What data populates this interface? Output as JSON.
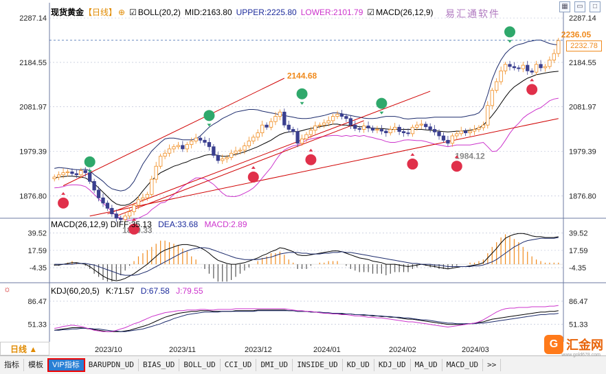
{
  "main_legend": {
    "symbol": "现货黄金",
    "period": "【日线】",
    "boll": "BOLL(20,2)",
    "mid": "MID:2163.80",
    "upper": "UPPER:2225.80",
    "lower": "LOWER:2101.79",
    "macd_label": "MACD(26,12,9)"
  },
  "watermark": "易汇通软件",
  "macd_legend": {
    "title": "MACD(26,12,9)",
    "diff": "DIFF:35.13",
    "dea": "DEA:33.68",
    "macd": "MACD:2.89"
  },
  "kdj_legend": {
    "title": "KDJ(60,20,5)",
    "k": "K:71.57",
    "d": "D:67.58",
    "j": "J:79.55"
  },
  "current_price": "2232.78",
  "period_button": "日线 ▲",
  "tabs": [
    "指标",
    "模板",
    "VIP指标",
    "BARUPDN_UD",
    "BIAS_UD",
    "BOLL_UD",
    "CCI_UD",
    "DMI_UD",
    "INSIDE_UD",
    "KD_UD",
    "KDJ_UD",
    "MA_UD",
    "MACD_UD",
    ">>"
  ],
  "logo": {
    "mark": "G",
    "name": "汇金网",
    "url": "www.gold678.com"
  },
  "colors": {
    "up": "#f08a1c",
    "down": "#3a3f8f",
    "grid": "#b0b8d0",
    "boll_upper": "#1b2a6b",
    "boll_mid": "#000000",
    "boll_lower": "#cc33cc",
    "trend": "#d00000",
    "buy": "#e0304a",
    "sell": "#2fa86b"
  },
  "chart_data": [
    {
      "type": "candlestick",
      "title": "现货黄金 日线",
      "ylim": [
        1825,
        2300
      ],
      "y_ticks": [
        2287.14,
        2184.55,
        2081.97,
        1979.39,
        1876.8
      ],
      "x_labels": [
        "2023/10",
        "2023/11",
        "2023/12",
        "2024/01",
        "2024/02",
        "2024/03"
      ],
      "annotations": {
        "high": "2236.05",
        "high2": "2144.68",
        "low": "1810.33",
        "low2": "1984.12"
      },
      "close": [
        1920,
        1925,
        1930,
        1932,
        1928,
        1925,
        1935,
        1930,
        1910,
        1890,
        1872,
        1860,
        1848,
        1835,
        1825,
        1822,
        1830,
        1840,
        1855,
        1868,
        1872,
        1880,
        1915,
        1945,
        1968,
        1975,
        1985,
        1990,
        1993,
        1985,
        1995,
        2003,
        2010,
        2005,
        2000,
        1990,
        1970,
        1958,
        1962,
        1965,
        1975,
        1980,
        1982,
        1992,
        2003,
        2012,
        2022,
        2040,
        2035,
        2048,
        2060,
        2070,
        2040,
        2030,
        2025,
        1998,
        2008,
        2018,
        2028,
        2038,
        2040,
        2045,
        2050,
        2060,
        2065,
        2060,
        2055,
        2040,
        2032,
        2030,
        2038,
        2033,
        2028,
        2030,
        2026,
        2022,
        2030,
        2035,
        2025,
        2022,
        2020,
        2035,
        2040,
        2042,
        2036,
        2030,
        2024,
        2015,
        2005,
        1998,
        2015,
        2020,
        2026,
        2022,
        2026,
        2030,
        2034,
        2040,
        2085,
        2120,
        2140,
        2165,
        2180,
        2175,
        2172,
        2170,
        2178,
        2165,
        2162,
        2180,
        2172,
        2175,
        2190,
        2205,
        2235
      ],
      "boll_upper": [
        1940,
        1942,
        1941,
        1940,
        1938,
        1937,
        1937,
        1938,
        1935,
        1925,
        1918,
        1910,
        1900,
        1893,
        1890,
        1888,
        1890,
        1897,
        1910,
        1930,
        1950,
        1965,
        1980,
        1990,
        2000,
        2008,
        2010,
        2010,
        2008,
        2006,
        2006,
        2006,
        2008,
        2015,
        2025,
        2035,
        2042,
        2048,
        2055,
        2060,
        2065,
        2070,
        2072,
        2074,
        2076,
        2076,
        2075,
        2072,
        2070,
        2068,
        2066,
        2064,
        2062,
        2060,
        2058,
        2056,
        2055,
        2055,
        2056,
        2058,
        2060,
        2062,
        2065,
        2068,
        2068,
        2066,
        2064,
        2062,
        2060,
        2058,
        2056,
        2055,
        2055,
        2056,
        2058,
        2060,
        2060,
        2060,
        2058,
        2055,
        2054,
        2055,
        2056,
        2056,
        2056,
        2057,
        2058,
        2058,
        2058,
        2058,
        2058,
        2058,
        2058,
        2060,
        2062,
        2064,
        2068,
        2080,
        2110,
        2145,
        2170,
        2190,
        2205,
        2215,
        2222,
        2226,
        2228,
        2232,
        2234,
        2236,
        2236,
        2232,
        2228,
        2226,
        2225
      ],
      "boll_mid": [
        1918,
        1920,
        1921,
        1922,
        1922,
        1921,
        1920,
        1918,
        1912,
        1905,
        1895,
        1885,
        1875,
        1865,
        1858,
        1855,
        1855,
        1858,
        1865,
        1875,
        1888,
        1900,
        1912,
        1922,
        1930,
        1935,
        1940,
        1945,
        1948,
        1952,
        1955,
        1960,
        1963,
        1966,
        1970,
        1972,
        1972,
        1970,
        1968,
        1968,
        1970,
        1972,
        1975,
        1978,
        1982,
        1986,
        1990,
        1995,
        2000,
        2005,
        2012,
        2018,
        2022,
        2024,
        2025,
        2025,
        2027,
        2030,
        2032,
        2034,
        2036,
        2038,
        2040,
        2042,
        2042,
        2040,
        2040,
        2038,
        2038,
        2036,
        2036,
        2034,
        2033,
        2032,
        2032,
        2031,
        2030,
        2030,
        2030,
        2030,
        2030,
        2030,
        2030,
        2030,
        2029,
        2028,
        2027,
        2026,
        2025,
        2024,
        2025,
        2026,
        2026,
        2027,
        2028,
        2030,
        2033,
        2040,
        2050,
        2062,
        2075,
        2090,
        2105,
        2118,
        2128,
        2135,
        2142,
        2148,
        2152,
        2156,
        2158,
        2160,
        2162,
        2163,
        2164
      ],
      "boll_lower": [
        1895,
        1896,
        1898,
        1901,
        1902,
        1902,
        1901,
        1898,
        1890,
        1880,
        1870,
        1860,
        1850,
        1840,
        1830,
        1825,
        1822,
        1820,
        1822,
        1825,
        1830,
        1835,
        1845,
        1852,
        1860,
        1862,
        1870,
        1880,
        1888,
        1898,
        1905,
        1912,
        1918,
        1918,
        1916,
        1910,
        1903,
        1893,
        1883,
        1876,
        1875,
        1875,
        1878,
        1883,
        1888,
        1895,
        1905,
        1918,
        1930,
        1942,
        1958,
        1972,
        1982,
        1988,
        1992,
        1994,
        1999,
        2005,
        2008,
        2010,
        2012,
        2014,
        2015,
        2016,
        2016,
        2014,
        2016,
        2014,
        2016,
        2014,
        2016,
        2013,
        2011,
        2008,
        2006,
        2002,
        2000,
        2000,
        2002,
        2005,
        2006,
        2005,
        2004,
        2004,
        2002,
        1999,
        1996,
        1994,
        1992,
        1990,
        1992,
        1994,
        1994,
        1994,
        1994,
        1996,
        1998,
        2000,
        1990,
        1979,
        1980,
        1990,
        2005,
        2021,
        2034,
        2044,
        2056,
        2064,
        2070,
        2076,
        2080,
        2088,
        2096,
        2100,
        2102
      ]
    },
    {
      "type": "bar+line",
      "title": "MACD(26,12,9)",
      "ylim": [
        -20,
        48
      ],
      "y_ticks": [
        39.52,
        17.59,
        -4.35
      ],
      "diff": [
        -1,
        -1,
        0,
        1,
        2,
        2,
        1,
        0,
        -3,
        -7,
        -11,
        -15,
        -18,
        -20,
        -21,
        -20,
        -18,
        -15,
        -12,
        -8,
        -4,
        0,
        5,
        10,
        15,
        18,
        20,
        22,
        24,
        25,
        25,
        24,
        23,
        21,
        18,
        14,
        9,
        5,
        3,
        1,
        0,
        0,
        1,
        2,
        4,
        6,
        8,
        11,
        13,
        16,
        18,
        21,
        20,
        18,
        16,
        12,
        11,
        11,
        12,
        13,
        14,
        15,
        16,
        17,
        17,
        16,
        14,
        12,
        10,
        8,
        7,
        6,
        4,
        3,
        2,
        0,
        0,
        0,
        -1,
        -2,
        -3,
        -2,
        -1,
        0,
        -1,
        -2,
        -3,
        -4,
        -5,
        -6,
        -5,
        -4,
        -3,
        -3,
        -2,
        -1,
        0,
        2,
        8,
        14,
        20,
        27,
        33,
        36,
        38,
        39,
        39,
        38,
        36,
        35,
        35,
        34,
        34,
        34,
        35
      ],
      "dea": [
        0,
        0,
        0,
        0,
        0,
        1,
        1,
        1,
        0,
        -1,
        -3,
        -5,
        -7,
        -9,
        -11,
        -13,
        -14,
        -14,
        -14,
        -13,
        -11,
        -9,
        -6,
        -3,
        0,
        3,
        6,
        9,
        12,
        15,
        17,
        19,
        20,
        21,
        21,
        20,
        18,
        16,
        14,
        12,
        10,
        8,
        7,
        6,
        6,
        6,
        6,
        7,
        8,
        9,
        11,
        13,
        14,
        15,
        15,
        15,
        14,
        14,
        13,
        13,
        13,
        14,
        14,
        15,
        15,
        16,
        15,
        15,
        14,
        13,
        12,
        11,
        10,
        9,
        8,
        7,
        6,
        5,
        4,
        3,
        2,
        1,
        1,
        0,
        0,
        0,
        -1,
        -1,
        -2,
        -3,
        -3,
        -3,
        -3,
        -3,
        -3,
        -2,
        -2,
        -1,
        1,
        3,
        6,
        10,
        14,
        18,
        22,
        25,
        28,
        30,
        31,
        32,
        33,
        33,
        33,
        33,
        34
      ]
    },
    {
      "type": "line",
      "title": "KDJ(60,20,5)",
      "ylim": [
        35,
        98
      ],
      "y_ticks": [
        86.47,
        51.33
      ],
      "k": [
        42,
        43,
        44,
        45,
        46,
        46,
        46,
        45,
        44,
        43,
        42,
        41,
        40,
        40,
        40,
        40,
        41,
        42,
        44,
        46,
        48,
        50,
        53,
        56,
        59,
        62,
        64,
        66,
        68,
        69,
        70,
        71,
        71,
        72,
        72,
        72,
        71,
        71,
        71,
        71,
        71,
        72,
        72,
        72,
        72,
        72,
        73,
        73,
        73,
        73,
        73,
        73,
        73,
        72,
        72,
        71,
        71,
        71,
        70,
        70,
        69,
        69,
        68,
        68,
        68,
        67,
        67,
        67,
        66,
        66,
        65,
        65,
        64,
        64,
        63,
        63,
        62,
        62,
        61,
        60,
        59,
        59,
        58,
        57,
        56,
        55,
        54,
        53,
        52,
        51,
        51,
        51,
        51,
        52,
        52,
        53,
        54,
        55,
        57,
        59,
        60,
        61,
        62,
        63,
        64,
        65,
        66,
        67,
        68,
        69,
        70,
        70,
        71,
        71,
        72
      ],
      "d": [
        42,
        42,
        43,
        43,
        44,
        44,
        45,
        45,
        45,
        44,
        44,
        43,
        42,
        41,
        41,
        40,
        40,
        41,
        42,
        43,
        44,
        46,
        48,
        50,
        52,
        55,
        57,
        60,
        62,
        64,
        66,
        67,
        68,
        69,
        70,
        70,
        70,
        70,
        71,
        71,
        71,
        71,
        71,
        71,
        71,
        71,
        72,
        72,
        72,
        72,
        72,
        72,
        72,
        72,
        72,
        71,
        71,
        71,
        70,
        70,
        70,
        69,
        69,
        68,
        68,
        68,
        67,
        67,
        66,
        66,
        66,
        65,
        65,
        64,
        64,
        63,
        63,
        62,
        62,
        61,
        61,
        60,
        59,
        58,
        58,
        57,
        56,
        55,
        54,
        53,
        53,
        52,
        52,
        52,
        52,
        52,
        53,
        53,
        54,
        55,
        56,
        57,
        58,
        59,
        60,
        61,
        62,
        63,
        64,
        65,
        66,
        66,
        67,
        67,
        68
      ],
      "j": [
        45,
        46,
        48,
        49,
        50,
        49,
        48,
        46,
        44,
        42,
        41,
        40,
        40,
        40,
        42,
        44,
        46,
        49,
        52,
        54,
        57,
        60,
        63,
        65,
        67,
        69,
        70,
        71,
        72,
        72,
        73,
        73,
        73,
        74,
        74,
        73,
        73,
        74,
        74,
        74,
        74,
        75,
        75,
        75,
        75,
        75,
        75,
        75,
        75,
        75,
        75,
        75,
        75,
        74,
        73,
        72,
        72,
        71,
        71,
        70,
        69,
        68,
        68,
        67,
        67,
        66,
        66,
        65,
        64,
        64,
        63,
        62,
        62,
        61,
        61,
        60,
        59,
        58,
        57,
        56,
        55,
        55,
        54,
        53,
        52,
        51,
        50,
        49,
        48,
        47,
        48,
        49,
        50,
        51,
        52,
        53,
        55,
        58,
        62,
        66,
        70,
        73,
        75,
        76,
        76,
        77,
        77,
        77,
        78,
        78,
        78,
        78,
        79,
        79,
        80
      ]
    }
  ]
}
